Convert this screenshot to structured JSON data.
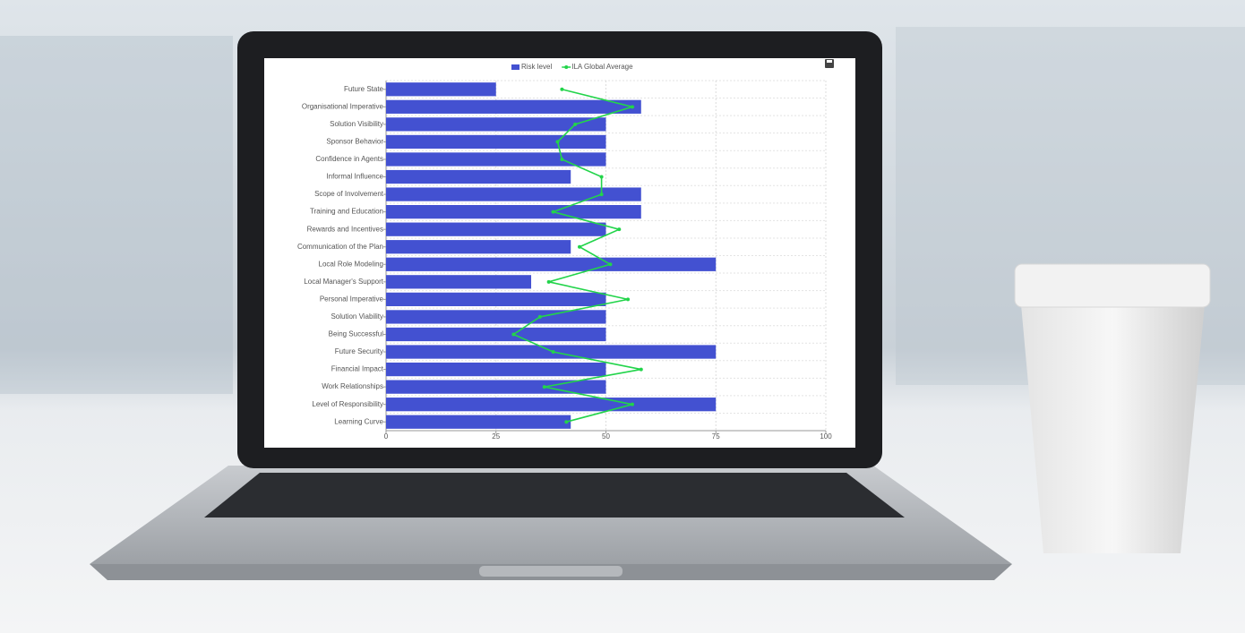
{
  "chart_data": {
    "type": "bar",
    "orientation": "horizontal",
    "grid": true,
    "legend": "top",
    "categories": [
      "Future State",
      "Organisational Imperative",
      "Solution Visibility",
      "Sponsor Behavior",
      "Confidence in Agents",
      "Informal Influence",
      "Scope of Involvement",
      "Training and Education",
      "Rewards and Incentives",
      "Communication of the Plan",
      "Local Role Modeling",
      "Local Manager's Support",
      "Personal Imperative",
      "Solution Viability",
      "Being Successful",
      "Future Security",
      "Financial Impact",
      "Work Relationships",
      "Level of Responsibility",
      "Learning Curve"
    ],
    "series": [
      {
        "name": "Risk level",
        "type": "bar",
        "color": "#4351d1",
        "values": [
          25,
          58,
          50,
          50,
          50,
          42,
          58,
          58,
          50,
          42,
          75,
          33,
          50,
          50,
          50,
          75,
          50,
          50,
          75,
          42
        ]
      },
      {
        "name": "ILA Global Average",
        "type": "line",
        "color": "#22d44a",
        "values": [
          40,
          56,
          43,
          39,
          40,
          49,
          49,
          38,
          53,
          44,
          51,
          37,
          55,
          35,
          29,
          38,
          58,
          36,
          56,
          41
        ]
      }
    ],
    "xlim": [
      0,
      100
    ],
    "xticks": [
      0,
      25,
      50,
      75,
      100
    ]
  }
}
